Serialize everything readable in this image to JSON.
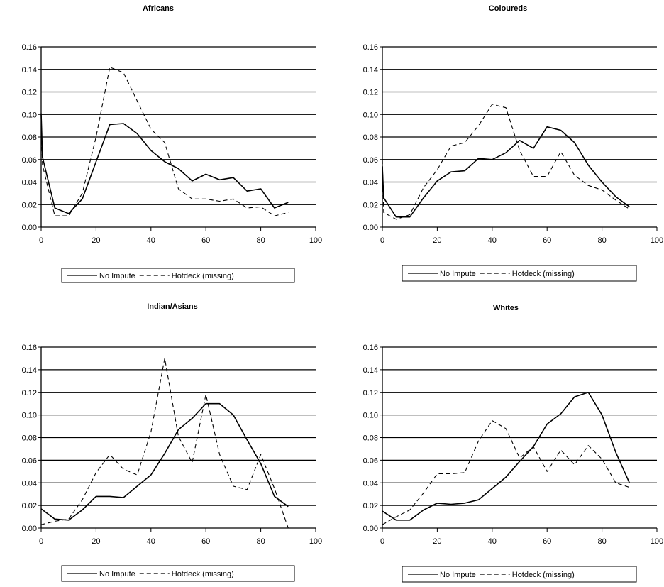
{
  "chart_data": [
    {
      "type": "line",
      "title": "Africans",
      "xlim": [
        0,
        100
      ],
      "ylim": [
        0,
        0.16
      ],
      "xticks": [
        "0",
        "20",
        "40",
        "60",
        "80",
        "100"
      ],
      "yticks": [
        "0.00",
        "0.02",
        "0.04",
        "0.06",
        "0.08",
        "0.10",
        "0.12",
        "0.14",
        "0.16"
      ],
      "grid": "horizontal",
      "legend_position": "bottom",
      "series": [
        {
          "name": "No Impute",
          "style": "solid",
          "color": "#000000",
          "x": [
            0,
            0.5,
            5,
            10,
            15,
            20,
            25,
            30,
            35,
            40,
            45,
            50,
            55,
            60,
            65,
            70,
            75,
            80,
            85,
            90
          ],
          "y": [
            0.101,
            0.062,
            0.017,
            0.012,
            0.025,
            0.058,
            0.091,
            0.092,
            0.083,
            0.068,
            0.058,
            0.052,
            0.041,
            0.047,
            0.042,
            0.044,
            0.032,
            0.034,
            0.017,
            0.022
          ]
        },
        {
          "name": "Hotdeck (missing)",
          "style": "dashed",
          "color": "#000000",
          "x": [
            0,
            0.5,
            5,
            10,
            15,
            20,
            25,
            30,
            35,
            40,
            45,
            50,
            55,
            60,
            65,
            70,
            75,
            80,
            85,
            90
          ],
          "y": [
            0.09,
            0.055,
            0.01,
            0.01,
            0.03,
            0.08,
            0.142,
            0.137,
            0.112,
            0.087,
            0.075,
            0.034,
            0.025,
            0.025,
            0.023,
            0.025,
            0.017,
            0.018,
            0.01,
            0.013
          ]
        }
      ]
    },
    {
      "type": "line",
      "title": "Coloureds",
      "xlim": [
        0,
        100
      ],
      "ylim": [
        0,
        0.16
      ],
      "xticks": [
        "0",
        "20",
        "40",
        "60",
        "80",
        "100"
      ],
      "yticks": [
        "0.00",
        "0.02",
        "0.04",
        "0.06",
        "0.08",
        "0.10",
        "0.12",
        "0.14",
        "0.16"
      ],
      "grid": "horizontal",
      "legend_position": "bottom",
      "series": [
        {
          "name": "No Impute",
          "style": "solid",
          "color": "#000000",
          "x": [
            0,
            0.5,
            5,
            10,
            15,
            20,
            25,
            30,
            35,
            40,
            45,
            50,
            55,
            60,
            65,
            70,
            75,
            80,
            85,
            90
          ],
          "y": [
            0.054,
            0.026,
            0.009,
            0.009,
            0.026,
            0.041,
            0.049,
            0.05,
            0.061,
            0.06,
            0.066,
            0.077,
            0.07,
            0.089,
            0.086,
            0.075,
            0.055,
            0.04,
            0.027,
            0.018
          ]
        },
        {
          "name": "Hotdeck (missing)",
          "style": "dashed",
          "color": "#000000",
          "x": [
            0,
            0.5,
            5,
            10,
            15,
            20,
            25,
            30,
            35,
            40,
            45,
            50,
            55,
            60,
            65,
            70,
            75,
            80,
            85,
            90
          ],
          "y": [
            0.06,
            0.013,
            0.007,
            0.011,
            0.035,
            0.051,
            0.072,
            0.075,
            0.09,
            0.109,
            0.106,
            0.068,
            0.045,
            0.045,
            0.067,
            0.046,
            0.037,
            0.033,
            0.024,
            0.016
          ]
        }
      ]
    },
    {
      "type": "line",
      "title": "Indian/Asians",
      "xlim": [
        0,
        100
      ],
      "ylim": [
        0,
        0.16
      ],
      "xticks": [
        "0",
        "20",
        "40",
        "60",
        "80",
        "100"
      ],
      "yticks": [
        "0.00",
        "0.02",
        "0.04",
        "0.06",
        "0.08",
        "0.10",
        "0.12",
        "0.14",
        "0.16"
      ],
      "grid": "horizontal",
      "legend_position": "bottom",
      "series": [
        {
          "name": "No Impute",
          "style": "solid",
          "color": "#000000",
          "x": [
            0,
            5,
            10,
            15,
            20,
            25,
            30,
            35,
            40,
            45,
            50,
            55,
            60,
            65,
            70,
            75,
            80,
            85,
            90
          ],
          "y": [
            0.017,
            0.008,
            0.007,
            0.016,
            0.028,
            0.028,
            0.027,
            0.037,
            0.047,
            0.066,
            0.087,
            0.097,
            0.11,
            0.11,
            0.1,
            0.078,
            0.057,
            0.028,
            0.019
          ]
        },
        {
          "name": "Hotdeck (missing)",
          "style": "dashed",
          "color": "#000000",
          "x": [
            0,
            5,
            10,
            15,
            20,
            25,
            30,
            35,
            40,
            45,
            50,
            55,
            60,
            65,
            70,
            75,
            80,
            85,
            90
          ],
          "y": [
            0.003,
            0.006,
            0.008,
            0.025,
            0.049,
            0.065,
            0.052,
            0.047,
            0.085,
            0.15,
            0.081,
            0.058,
            0.118,
            0.065,
            0.037,
            0.034,
            0.065,
            0.035,
            0.0
          ]
        }
      ]
    },
    {
      "type": "line",
      "title": "Whites",
      "xlim": [
        0,
        100
      ],
      "ylim": [
        0,
        0.16
      ],
      "xticks": [
        "0",
        "20",
        "40",
        "60",
        "80",
        "100"
      ],
      "yticks": [
        "0.00",
        "0.02",
        "0.04",
        "0.06",
        "0.08",
        "0.10",
        "0.12",
        "0.14",
        "0.16"
      ],
      "grid": "horizontal",
      "legend_position": "bottom",
      "series": [
        {
          "name": "No Impute",
          "style": "solid",
          "color": "#000000",
          "x": [
            0,
            5,
            10,
            15,
            20,
            25,
            30,
            35,
            40,
            45,
            50,
            55,
            60,
            65,
            70,
            75,
            80,
            85,
            90
          ],
          "y": [
            0.015,
            0.007,
            0.007,
            0.016,
            0.022,
            0.021,
            0.022,
            0.025,
            0.035,
            0.045,
            0.059,
            0.072,
            0.092,
            0.101,
            0.116,
            0.12,
            0.1,
            0.067,
            0.04
          ]
        },
        {
          "name": "Hotdeck (missing)",
          "style": "dashed",
          "color": "#000000",
          "x": [
            0,
            5,
            10,
            15,
            20,
            25,
            30,
            35,
            40,
            45,
            50,
            55,
            60,
            65,
            70,
            75,
            80,
            85,
            90
          ],
          "y": [
            0.003,
            0.01,
            0.016,
            0.031,
            0.048,
            0.048,
            0.049,
            0.077,
            0.095,
            0.088,
            0.062,
            0.072,
            0.05,
            0.069,
            0.056,
            0.073,
            0.061,
            0.04,
            0.036
          ]
        }
      ]
    }
  ]
}
